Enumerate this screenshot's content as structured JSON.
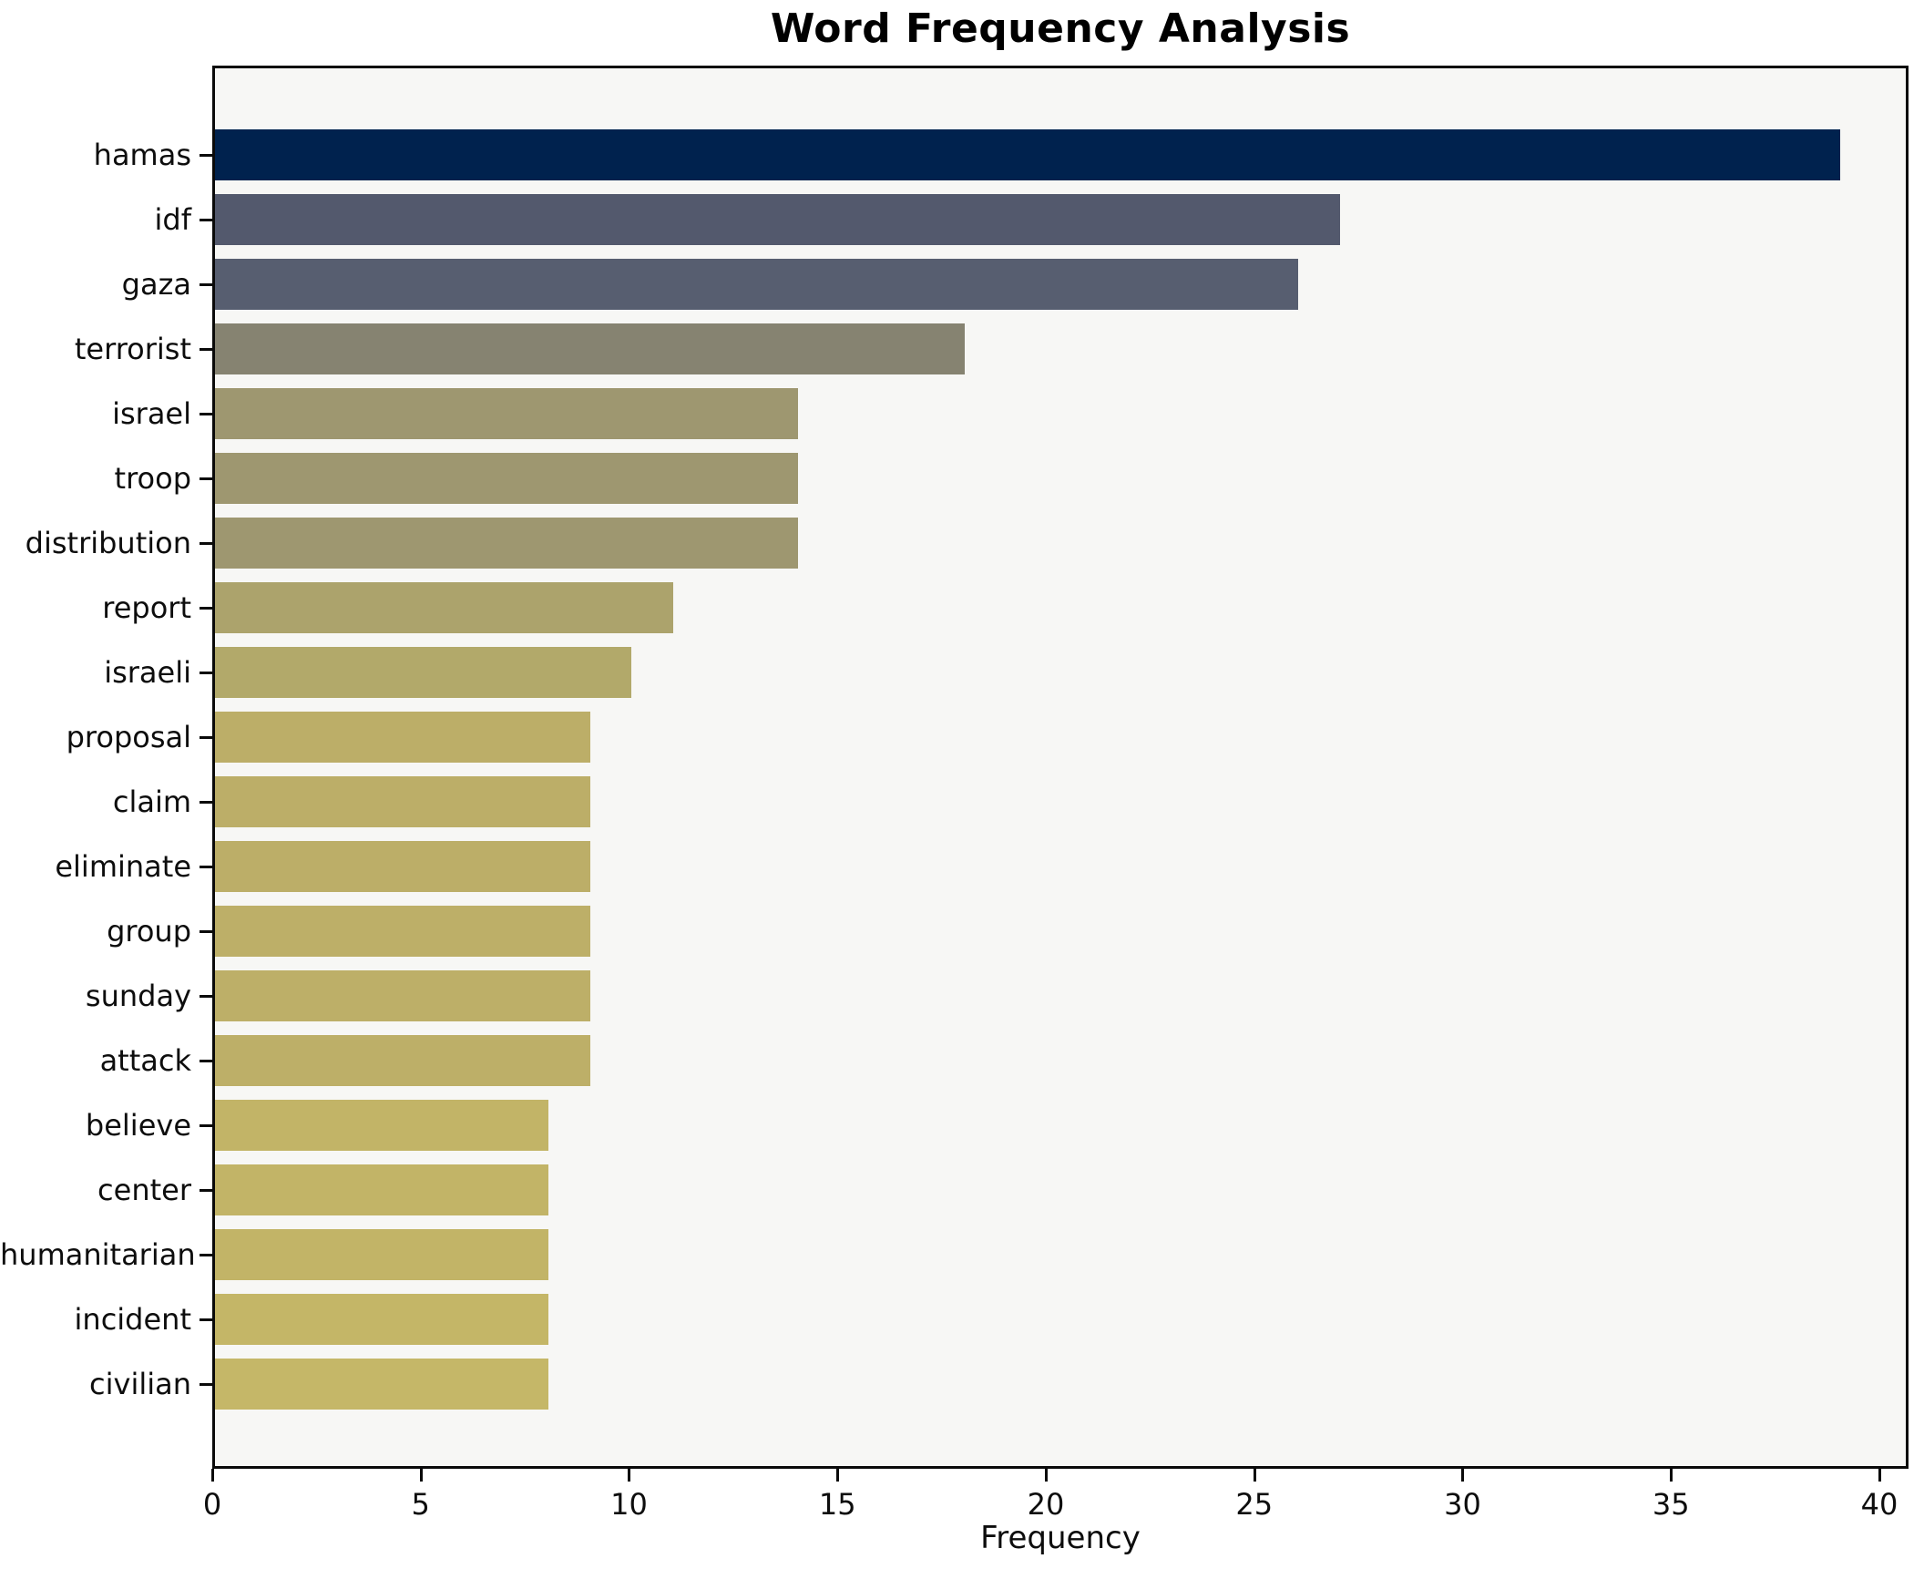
{
  "title": "Word Frequency Analysis",
  "chart_data": {
    "type": "bar",
    "orientation": "horizontal",
    "title": "Word Frequency Analysis",
    "xlabel": "Frequency",
    "ylabel": "",
    "categories": [
      "hamas",
      "idf",
      "gaza",
      "terrorist",
      "israel",
      "troop",
      "distribution",
      "report",
      "israeli",
      "proposal",
      "claim",
      "eliminate",
      "group",
      "sunday",
      "attack",
      "believe",
      "center",
      "humanitarian",
      "incident",
      "civilian"
    ],
    "values": [
      39,
      27,
      26,
      18,
      14,
      14,
      14,
      11,
      10,
      9,
      9,
      9,
      9,
      9,
      9,
      8,
      8,
      8,
      8,
      8
    ],
    "bar_colors": [
      "#00224e",
      "#53596d",
      "#575e70",
      "#868371",
      "#9e9770",
      "#9e9770",
      "#9e9770",
      "#aca36c",
      "#b2a96a",
      "#bcae68",
      "#bcae68",
      "#bcae68",
      "#bdaf68",
      "#bdaf68",
      "#bdaf68",
      "#c2b467",
      "#c2b467",
      "#c2b467",
      "#c4b667",
      "#c5b768"
    ],
    "xticks": [
      0,
      5,
      10,
      15,
      20,
      25,
      30,
      35,
      40
    ],
    "xlim": [
      0,
      40.7
    ],
    "grid": false,
    "legend_position": "none",
    "plot_background": "#f7f7f5",
    "page_background": "#ffffff",
    "spine_color": "#0a0a0a",
    "colormap": "cividis"
  }
}
